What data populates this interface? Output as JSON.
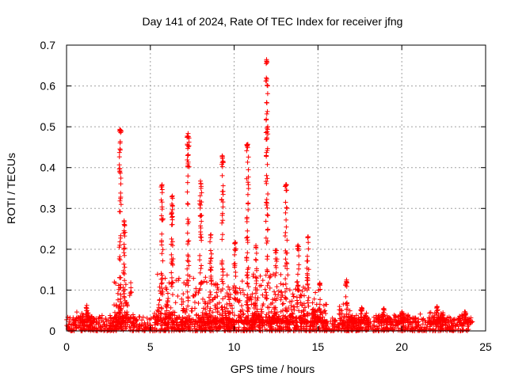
{
  "chart_data": {
    "type": "scatter",
    "title": "Day 141 of 2024, Rate Of TEC Index for receiver jfng",
    "xlabel": "GPS time / hours",
    "ylabel": "ROTI / TECUs",
    "xlim": [
      0,
      25
    ],
    "ylim": [
      0,
      0.7
    ],
    "xticks": [
      0,
      5,
      10,
      15,
      20,
      25
    ],
    "yticks": [
      0,
      0.1,
      0.2,
      0.3,
      0.4,
      0.5,
      0.6,
      0.7
    ],
    "xtick_labels": [
      "0",
      "5",
      "10",
      "15",
      "20",
      "25"
    ],
    "ytick_labels": [
      "0",
      "0.1",
      "0.2",
      "0.3",
      "0.4",
      "0.5",
      "0.6",
      "0.7"
    ],
    "grid": true,
    "marker": "+",
    "color": "#ff0000",
    "baseline": {
      "x_range": [
        0,
        24
      ],
      "y_range": [
        0.0,
        0.035
      ]
    },
    "spikes": [
      {
        "x": 3.2,
        "peak": 0.495
      },
      {
        "x": 3.45,
        "peak": 0.27
      },
      {
        "x": 5.7,
        "peak": 0.36
      },
      {
        "x": 6.3,
        "peak": 0.335
      },
      {
        "x": 7.25,
        "peak": 0.485
      },
      {
        "x": 8.0,
        "peak": 0.37
      },
      {
        "x": 8.6,
        "peak": 0.24
      },
      {
        "x": 9.3,
        "peak": 0.43
      },
      {
        "x": 10.05,
        "peak": 0.22
      },
      {
        "x": 10.8,
        "peak": 0.46
      },
      {
        "x": 11.3,
        "peak": 0.21
      },
      {
        "x": 11.95,
        "peak": 0.665
      },
      {
        "x": 12.5,
        "peak": 0.2
      },
      {
        "x": 13.1,
        "peak": 0.36
      },
      {
        "x": 13.8,
        "peak": 0.21
      },
      {
        "x": 14.4,
        "peak": 0.235
      },
      {
        "x": 15.1,
        "peak": 0.12
      },
      {
        "x": 16.7,
        "peak": 0.125
      },
      {
        "x": 1.2,
        "peak": 0.065
      },
      {
        "x": 17.6,
        "peak": 0.06
      },
      {
        "x": 18.9,
        "peak": 0.055
      },
      {
        "x": 20.0,
        "peak": 0.05
      },
      {
        "x": 22.1,
        "peak": 0.065
      },
      {
        "x": 23.8,
        "peak": 0.048
      }
    ]
  }
}
